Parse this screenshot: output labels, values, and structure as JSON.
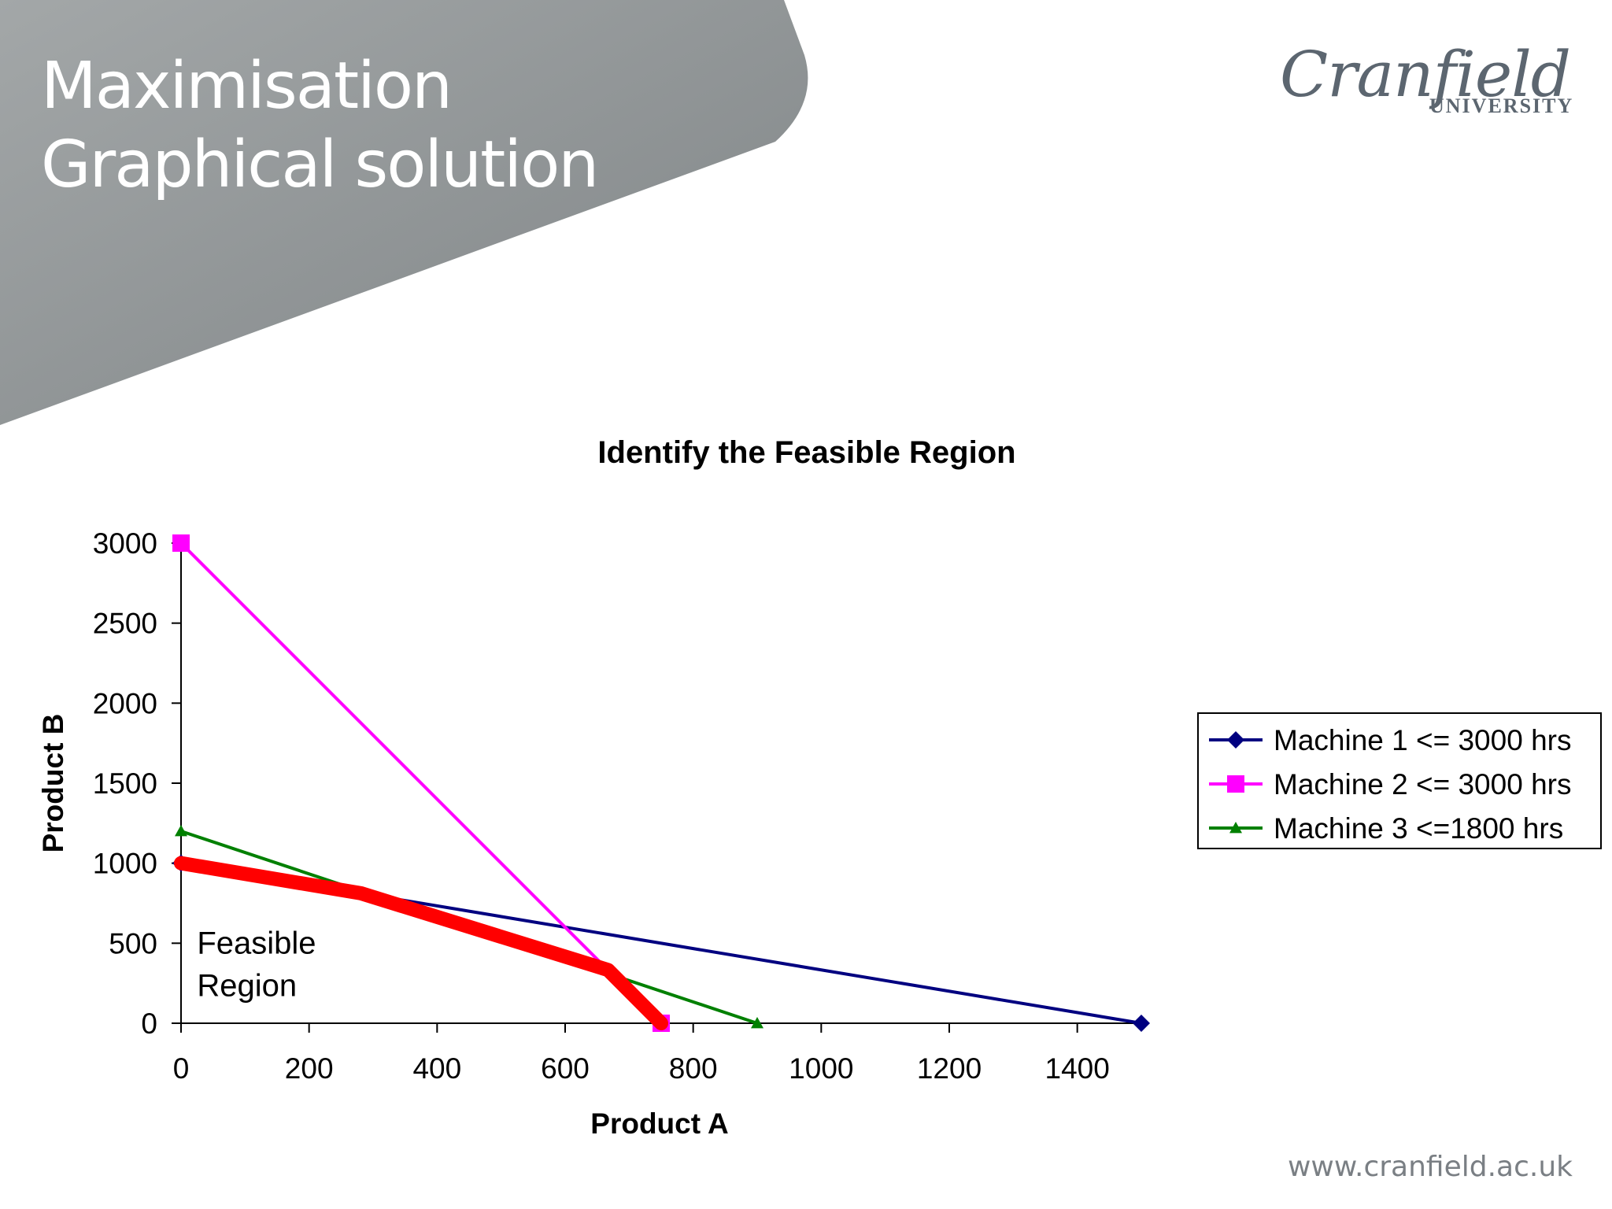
{
  "slide": {
    "title_line1": "Maximisation",
    "title_line2": "Graphical solution",
    "logo_word": "Cranfield",
    "logo_sub": "UNIVERSITY",
    "footer_url": "www.cranfield.ac.uk",
    "banner_color": "#8e9293"
  },
  "chart_data": {
    "type": "line",
    "title": "Identify the Feasible Region",
    "xlabel": "Product A",
    "ylabel": "Product B",
    "xlim": [
      0,
      1500
    ],
    "ylim": [
      0,
      3000
    ],
    "xticks": [
      0,
      200,
      400,
      600,
      800,
      1000,
      1200,
      1400
    ],
    "yticks": [
      0,
      500,
      1000,
      1500,
      2000,
      2500,
      3000
    ],
    "grid": false,
    "legend_position": "right",
    "series": [
      {
        "name": "Machine 1 <= 3000 hrs",
        "color": "#000080",
        "marker": "diamond",
        "points": [
          [
            0,
            1000
          ],
          [
            1500,
            0
          ]
        ]
      },
      {
        "name": "Machine 2 <= 3000 hrs",
        "color": "#ff00ff",
        "marker": "square",
        "points": [
          [
            0,
            3000
          ],
          [
            750,
            0
          ]
        ]
      },
      {
        "name": "Machine 3 <=1800 hrs",
        "color": "#008000",
        "marker": "triangle",
        "points": [
          [
            0,
            1200
          ],
          [
            900,
            0
          ]
        ]
      }
    ],
    "feasible_boundary": {
      "color": "#ff0000",
      "points": [
        [
          0,
          1000
        ],
        [
          281,
          812
        ],
        [
          667,
          333
        ],
        [
          750,
          0
        ]
      ]
    },
    "annotations": [
      {
        "lines": [
          "Feasible",
          "Region"
        ],
        "x": 25,
        "y": 500
      }
    ]
  }
}
